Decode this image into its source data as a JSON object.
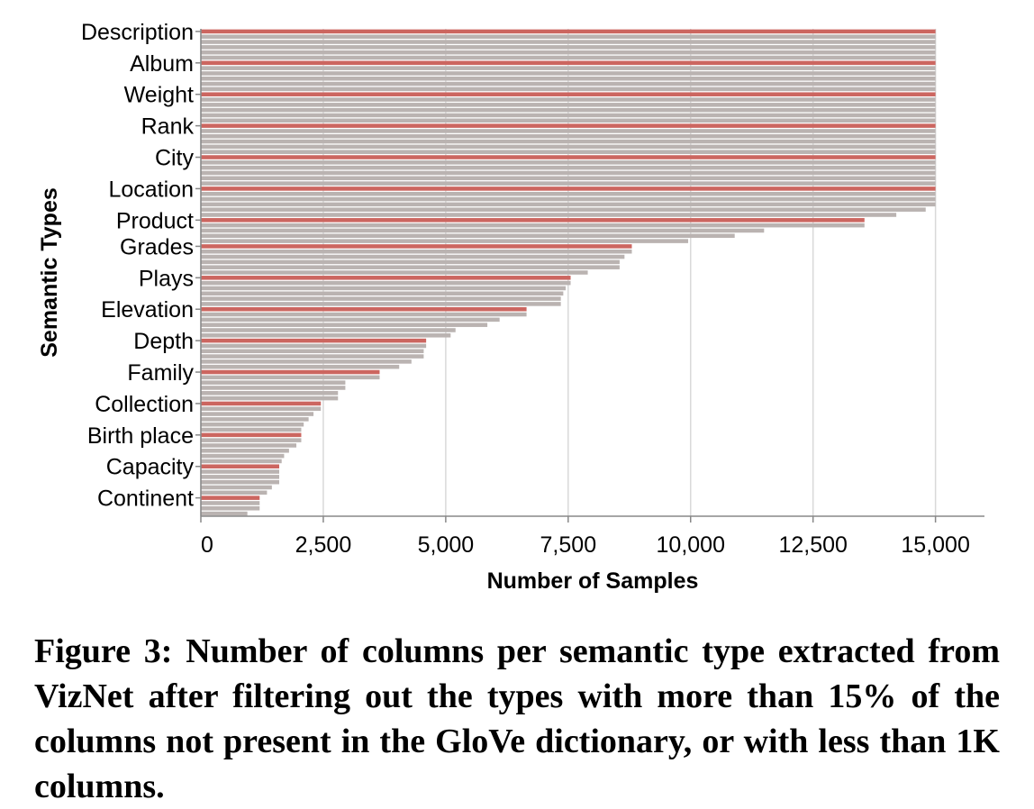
{
  "chart_data": {
    "type": "bar",
    "orientation": "horizontal",
    "xlabel": "Number of Samples",
    "ylabel": "Semantic Types",
    "xlim": [
      0,
      16000
    ],
    "x_ticks": [
      0,
      2500,
      5000,
      7500,
      10000,
      12500,
      15000
    ],
    "x_tick_labels": [
      "0",
      "2,500",
      "5,000",
      "7,500",
      "10,000",
      "12,500",
      "15,000"
    ],
    "grid": "vertical",
    "colors": {
      "highlight": "#cc6660",
      "bar": "#bab3b1",
      "grid": "#d9d9d9",
      "axis": "#888888"
    },
    "labeled_categories": [
      "Description",
      "Album",
      "Weight",
      "Rank",
      "City",
      "Location",
      "Product",
      "Grades",
      "Plays",
      "Elevation",
      "Depth",
      "Family",
      "Collection",
      "Birth place",
      "Capacity",
      "Continent"
    ],
    "values": [
      15000,
      15000,
      15000,
      15000,
      15000,
      15000,
      15000,
      15000,
      15000,
      15000,
      15000,
      15000,
      15000,
      15000,
      15000,
      15000,
      15000,
      15000,
      15000,
      15000,
      15000,
      15000,
      15000,
      15000,
      15000,
      15000,
      15000,
      15000,
      15000,
      15000,
      15000,
      15000,
      15000,
      15000,
      14800,
      14200,
      13550,
      13550,
      11500,
      10900,
      9950,
      8800,
      8800,
      8650,
      8550,
      8550,
      7900,
      7550,
      7550,
      7450,
      7400,
      7350,
      7350,
      6650,
      6650,
      6100,
      5850,
      5200,
      5100,
      4600,
      4600,
      4550,
      4550,
      4300,
      4050,
      3650,
      3650,
      2950,
      2950,
      2800,
      2800,
      2450,
      2450,
      2300,
      2200,
      2100,
      2050,
      2050,
      2050,
      1950,
      1800,
      1700,
      1650,
      1600,
      1600,
      1600,
      1600,
      1450,
      1350,
      1200,
      1200,
      1200,
      950
    ],
    "highlighted_indices": [
      0,
      6,
      12,
      18,
      24,
      30,
      36,
      41,
      47,
      53,
      59,
      65,
      71,
      77,
      83,
      89
    ]
  },
  "caption": "Figure 3: Number of columns per semantic type extracted from VizNet after filtering out the types with more than 15% of the columns not present in the GloVe dictionary, or with less than 1K columns."
}
